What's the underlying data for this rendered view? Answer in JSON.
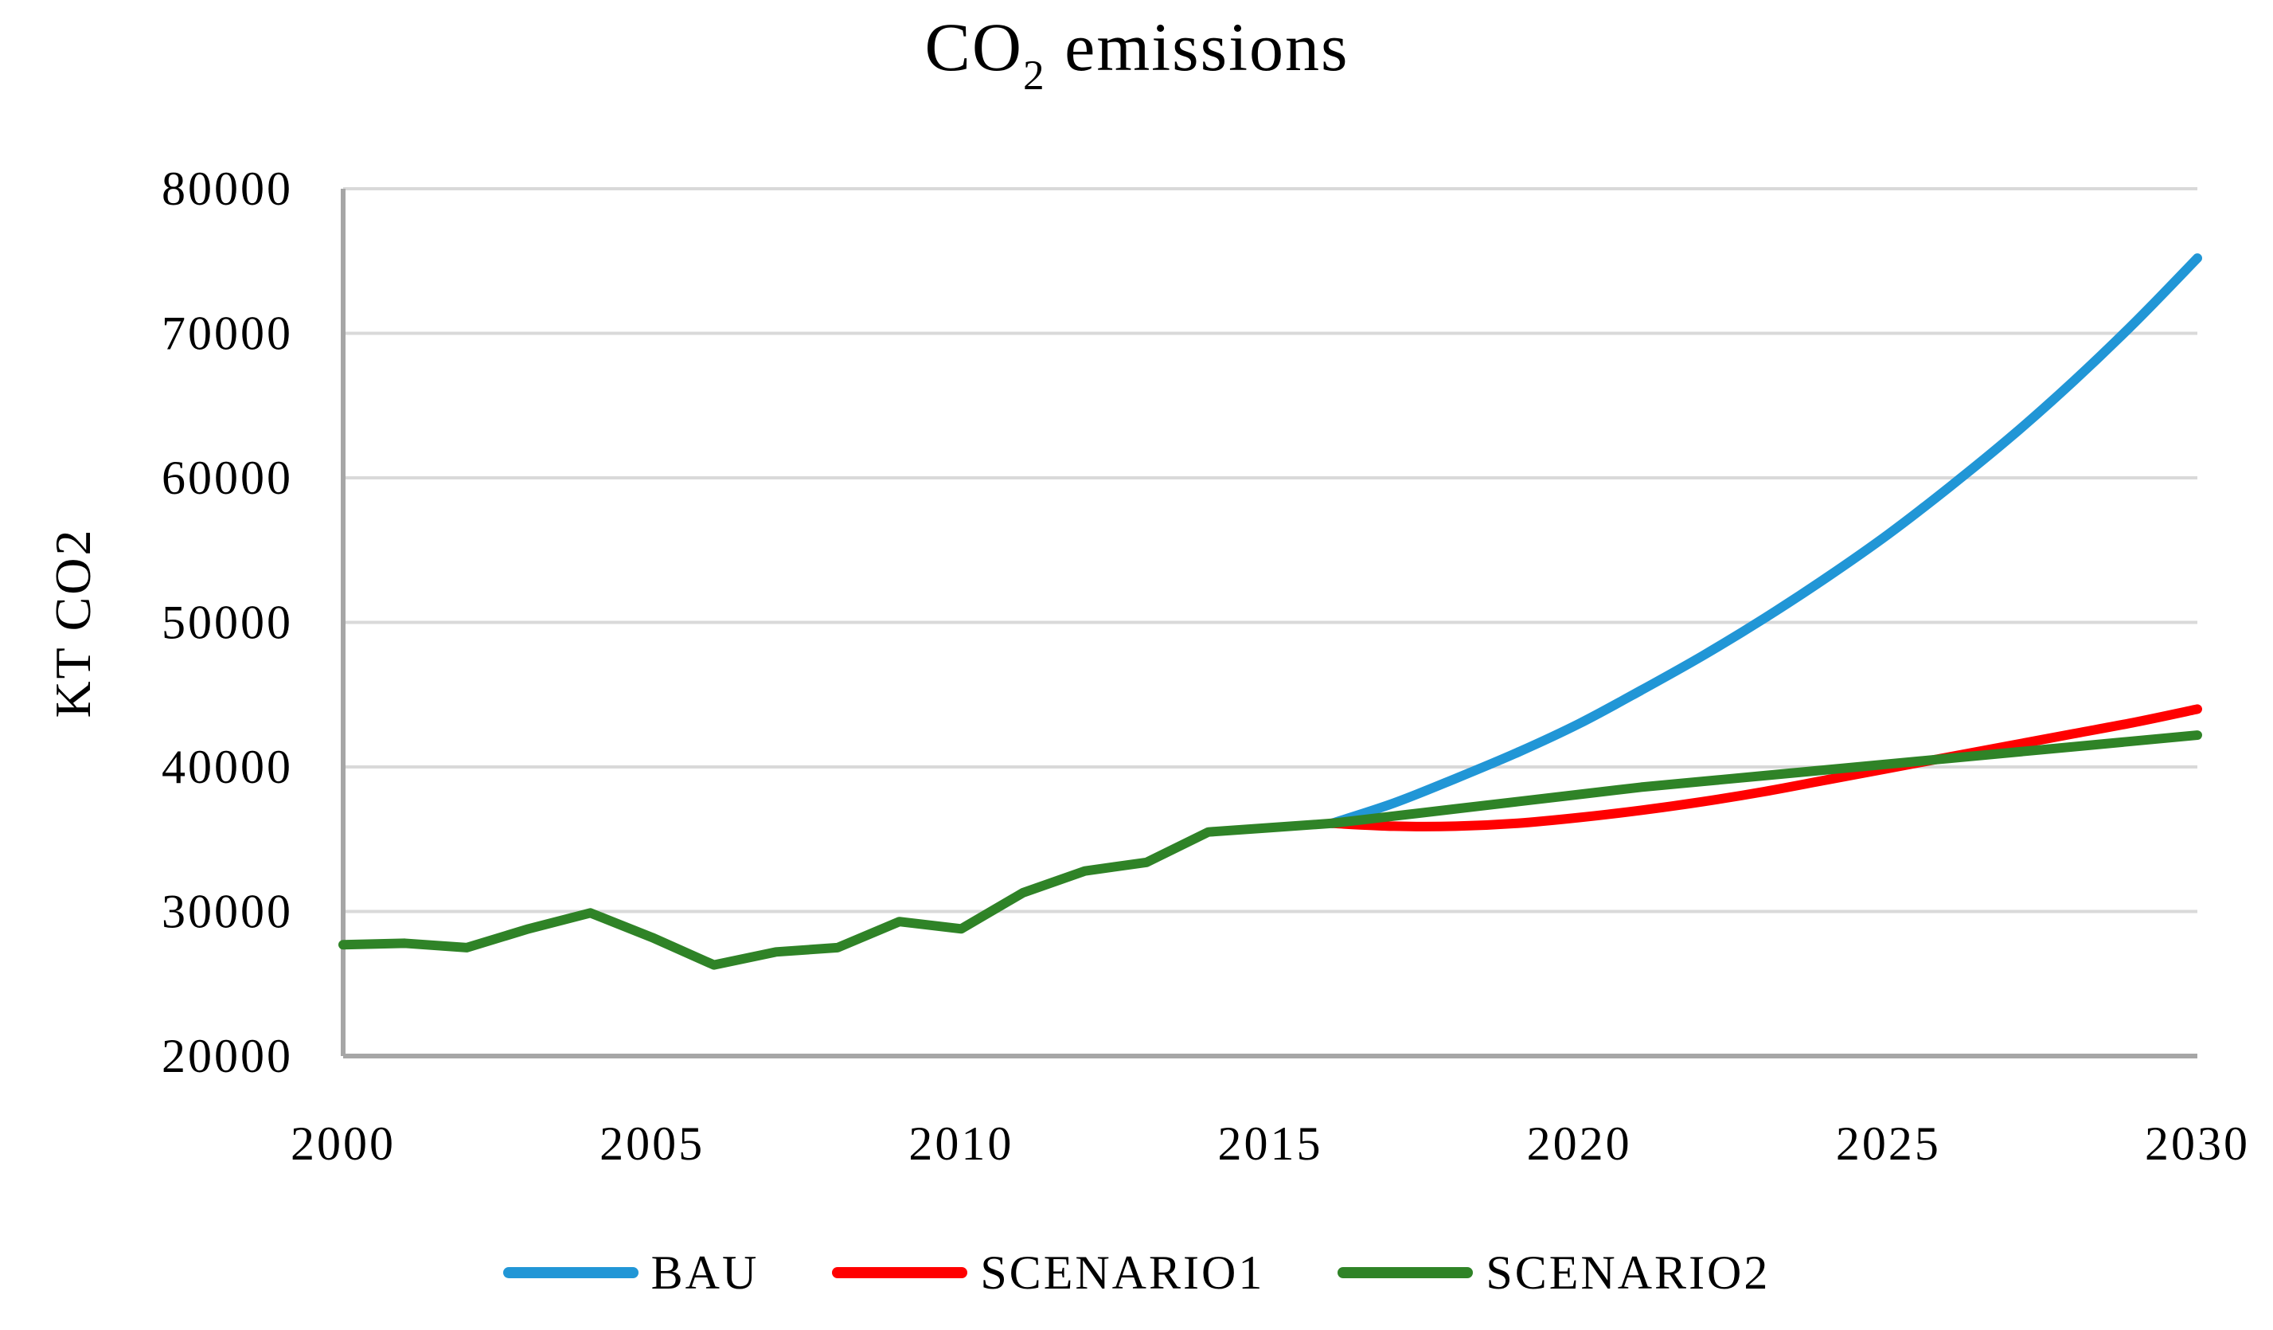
{
  "title": {
    "prefix": "CO",
    "subscript": "2",
    "suffix": " emissions"
  },
  "y_axis": {
    "title": "KT CO2",
    "ticks": [
      "20000",
      "30000",
      "40000",
      "50000",
      "60000",
      "70000",
      "80000"
    ],
    "min": 20000,
    "max": 80000
  },
  "x_axis": {
    "ticks": [
      "2000",
      "2005",
      "2010",
      "2015",
      "2020",
      "2025",
      "2030"
    ],
    "min": 2000,
    "max": 2030
  },
  "legend": [
    {
      "label": "BAU",
      "color": "#2196D6"
    },
    {
      "label": "SCENARIO1",
      "color": "#FF0000"
    },
    {
      "label": "SCENARIO2",
      "color": "#2F8327"
    }
  ],
  "colors": {
    "gridline": "#D9D9D9",
    "axis": "#A6A6A6",
    "background": "#FFFFFF"
  },
  "chart_data": {
    "type": "line",
    "title": "CO2 emissions",
    "xlabel": "",
    "ylabel": "KT CO2",
    "xlim": [
      2000,
      2030
    ],
    "ylim": [
      20000,
      80000
    ],
    "grid": "horizontal",
    "legend_position": "bottom",
    "x": [
      2000,
      2001,
      2002,
      2003,
      2004,
      2005,
      2006,
      2007,
      2008,
      2009,
      2010,
      2011,
      2012,
      2013,
      2014,
      2015,
      2016,
      2017,
      2018,
      2019,
      2020,
      2021,
      2022,
      2023,
      2024,
      2025,
      2026,
      2027,
      2028,
      2029,
      2030
    ],
    "series": [
      {
        "name": "BAU",
        "color": "#2196D6",
        "smooth": true,
        "values": [
          null,
          null,
          null,
          null,
          null,
          null,
          null,
          null,
          null,
          null,
          null,
          null,
          null,
          null,
          null,
          null,
          36100,
          37500,
          39200,
          41000,
          43000,
          45300,
          47700,
          50300,
          53100,
          56100,
          59400,
          62900,
          66700,
          70800,
          75200
        ]
      },
      {
        "name": "SCENARIO1",
        "color": "#FF0000",
        "smooth": true,
        "values": [
          null,
          null,
          null,
          null,
          null,
          null,
          null,
          null,
          null,
          null,
          null,
          null,
          null,
          null,
          null,
          null,
          36100,
          35900,
          35900,
          36100,
          36500,
          37000,
          37600,
          38300,
          39100,
          39900,
          40700,
          41500,
          42300,
          43100,
          44000
        ]
      },
      {
        "name": "SCENARIO2",
        "color": "#2F8327",
        "smooth": false,
        "values": [
          27700,
          27800,
          27500,
          28800,
          29900,
          28200,
          26300,
          27200,
          27500,
          29300,
          28800,
          31300,
          32800,
          33400,
          35500,
          35800,
          36100,
          36600,
          37100,
          37600,
          38100,
          38600,
          39000,
          39400,
          39800,
          40200,
          40600,
          41000,
          41400,
          41800,
          42200
        ]
      }
    ]
  }
}
